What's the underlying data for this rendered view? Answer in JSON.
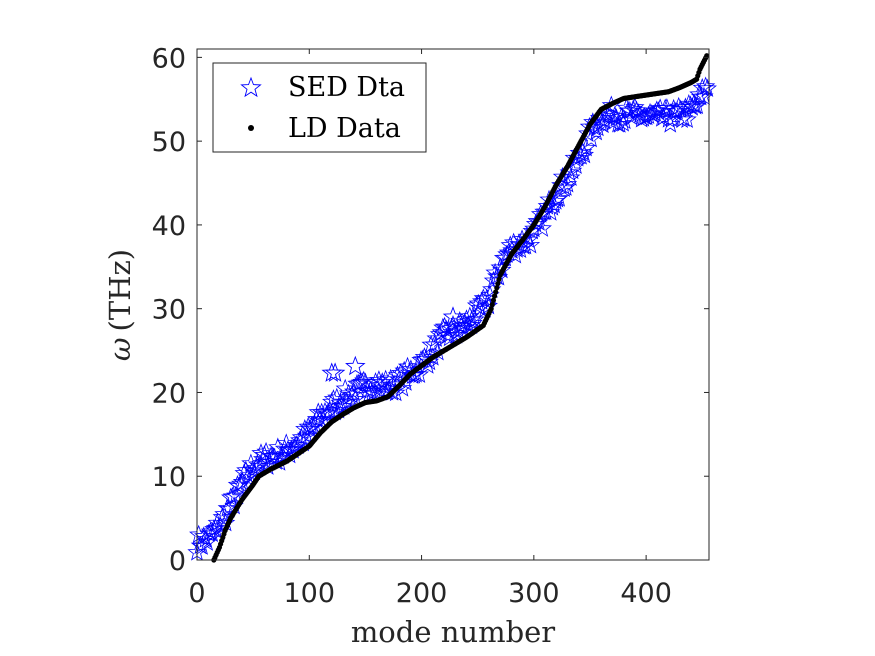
{
  "chart_data": {
    "type": "scatter",
    "xlabel": "mode number",
    "ylabel_symbol": "ω",
    "ylabel_unit": "(THz)",
    "xlim": [
      0,
      456
    ],
    "ylim": [
      0,
      61
    ],
    "xticks": [
      0,
      100,
      200,
      300,
      400
    ],
    "yticks": [
      0,
      10,
      20,
      30,
      40,
      50,
      60
    ],
    "grid": false,
    "legend_position": "top-left",
    "series": [
      {
        "name": "SED Dta",
        "marker": "star-outline",
        "color": "#0000ff",
        "curve": [
          [
            0,
            2.0
          ],
          [
            10,
            2.5
          ],
          [
            20,
            4.0
          ],
          [
            30,
            6.5
          ],
          [
            40,
            9.0
          ],
          [
            50,
            11.2
          ],
          [
            60,
            12.0
          ],
          [
            70,
            12.4
          ],
          [
            80,
            13.0
          ],
          [
            90,
            14.0
          ],
          [
            100,
            15.2
          ],
          [
            110,
            17.0
          ],
          [
            120,
            18.2
          ],
          [
            130,
            19.2
          ],
          [
            140,
            19.9
          ],
          [
            150,
            20.6
          ],
          [
            160,
            21.0
          ],
          [
            170,
            20.6
          ],
          [
            180,
            21.2
          ],
          [
            190,
            22.3
          ],
          [
            200,
            23.3
          ],
          [
            210,
            25.0
          ],
          [
            220,
            26.8
          ],
          [
            230,
            27.3
          ],
          [
            240,
            28.2
          ],
          [
            250,
            29.4
          ],
          [
            260,
            31.2
          ],
          [
            270,
            35.0
          ],
          [
            280,
            37.2
          ],
          [
            290,
            37.8
          ],
          [
            300,
            38.8
          ],
          [
            310,
            41.2
          ],
          [
            320,
            43.8
          ],
          [
            330,
            45.5
          ],
          [
            340,
            47.8
          ],
          [
            350,
            50.8
          ],
          [
            360,
            52.8
          ],
          [
            370,
            53.2
          ],
          [
            380,
            53.0
          ],
          [
            390,
            53.0
          ],
          [
            400,
            52.9
          ],
          [
            410,
            52.8
          ],
          [
            420,
            52.9
          ],
          [
            430,
            53.1
          ],
          [
            440,
            53.6
          ],
          [
            445,
            54.2
          ],
          [
            450,
            55.5
          ],
          [
            455,
            56.5
          ]
        ],
        "outliers": [
          [
            120,
            22.3
          ],
          [
            123,
            22.3
          ],
          [
            141,
            23.1
          ],
          [
            228,
            29.0
          ],
          [
            244,
            28.0
          ]
        ]
      },
      {
        "name": "LD Data",
        "marker": "dot",
        "color": "#000000",
        "curve": [
          [
            15,
            0.0
          ],
          [
            20,
            1.5
          ],
          [
            25,
            3.5
          ],
          [
            30,
            5.0
          ],
          [
            40,
            7.2
          ],
          [
            50,
            9.0
          ],
          [
            55,
            10.0
          ],
          [
            65,
            10.8
          ],
          [
            80,
            11.8
          ],
          [
            100,
            13.6
          ],
          [
            110,
            15.2
          ],
          [
            120,
            16.5
          ],
          [
            130,
            17.4
          ],
          [
            140,
            18.2
          ],
          [
            150,
            18.8
          ],
          [
            160,
            19.0
          ],
          [
            170,
            19.5
          ],
          [
            180,
            20.8
          ],
          [
            190,
            22.2
          ],
          [
            200,
            23.2
          ],
          [
            210,
            24.2
          ],
          [
            220,
            25.0
          ],
          [
            240,
            26.6
          ],
          [
            255,
            28.0
          ],
          [
            262,
            30.0
          ],
          [
            270,
            34.0
          ],
          [
            280,
            36.5
          ],
          [
            290,
            38.2
          ],
          [
            300,
            40.0
          ],
          [
            310,
            42.2
          ],
          [
            320,
            44.8
          ],
          [
            330,
            47.0
          ],
          [
            340,
            49.5
          ],
          [
            350,
            52.0
          ],
          [
            360,
            53.8
          ],
          [
            370,
            54.5
          ],
          [
            380,
            55.1
          ],
          [
            400,
            55.5
          ],
          [
            420,
            55.9
          ],
          [
            430,
            56.4
          ],
          [
            440,
            57.0
          ],
          [
            445,
            57.4
          ],
          [
            448,
            58.6
          ],
          [
            451,
            59.4
          ],
          [
            454,
            60.2
          ]
        ]
      }
    ]
  }
}
